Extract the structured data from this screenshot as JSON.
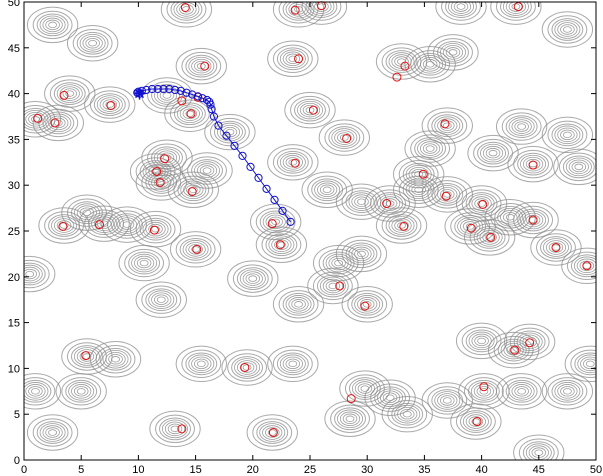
{
  "chart_data": {
    "type": "scatter",
    "title": "",
    "xlabel": "",
    "ylabel": "",
    "xlim": [
      0,
      50
    ],
    "ylim": [
      0,
      50
    ],
    "xticks": [
      0,
      5,
      10,
      15,
      20,
      25,
      30,
      35,
      40,
      45,
      50
    ],
    "yticks": [
      0,
      5,
      10,
      15,
      20,
      25,
      30,
      35,
      40,
      45,
      50
    ],
    "x_tick_labels": [
      "0",
      "5",
      "10",
      "15",
      "20",
      "25",
      "30",
      "35",
      "40",
      "45",
      "50"
    ],
    "y_tick_labels": [
      "0",
      "5",
      "10",
      "15",
      "20",
      "25",
      "30",
      "35",
      "40",
      "45",
      "50"
    ],
    "grid": false,
    "colors": {
      "contour": "#8c8c8c",
      "sources": "#e01010",
      "path": "#1010d0",
      "axis": "#000000"
    },
    "contour_centers": [
      [
        2.5,
        47.5
      ],
      [
        6,
        45.5
      ],
      [
        14.2,
        49.2
      ],
      [
        24,
        49.2
      ],
      [
        26,
        49.5
      ],
      [
        38.2,
        49.5
      ],
      [
        43,
        49.5
      ],
      [
        47.5,
        47
      ],
      [
        4,
        40
      ],
      [
        7.5,
        38.8
      ],
      [
        12.5,
        39.8
      ],
      [
        14.5,
        37.8
      ],
      [
        15.5,
        43
      ],
      [
        23.5,
        43.8
      ],
      [
        33,
        43.5
      ],
      [
        35.5,
        43.2
      ],
      [
        37.5,
        44.5
      ],
      [
        1,
        37.2
      ],
      [
        3,
        36.8
      ],
      [
        18,
        35.8
      ],
      [
        25,
        38.2
      ],
      [
        28,
        35.2
      ],
      [
        37,
        36.5
      ],
      [
        43.5,
        36.4
      ],
      [
        47.5,
        35.5
      ],
      [
        12.5,
        33
      ],
      [
        11.5,
        31.5
      ],
      [
        12,
        30.3
      ],
      [
        14.8,
        29.5
      ],
      [
        16,
        31.6
      ],
      [
        23.5,
        32.5
      ],
      [
        26.5,
        29.5
      ],
      [
        34.5,
        31.2
      ],
      [
        35.5,
        34
      ],
      [
        41,
        33.5
      ],
      [
        44.5,
        32.3
      ],
      [
        48.5,
        32
      ],
      [
        3.5,
        25.6
      ],
      [
        5.5,
        27
      ],
      [
        7,
        25.8
      ],
      [
        9,
        25.7
      ],
      [
        11.5,
        25.2
      ],
      [
        15,
        23
      ],
      [
        22,
        26
      ],
      [
        22.5,
        23.5
      ],
      [
        29.5,
        28.2
      ],
      [
        32,
        28
      ],
      [
        34.5,
        29.5
      ],
      [
        33,
        25.6
      ],
      [
        37,
        29
      ],
      [
        39,
        25.5
      ],
      [
        40,
        28
      ],
      [
        40.7,
        24.3
      ],
      [
        42.5,
        26.5
      ],
      [
        44.5,
        26.2
      ],
      [
        46.5,
        23.2
      ],
      [
        49.2,
        21.2
      ],
      [
        0.5,
        20.3
      ],
      [
        10.5,
        21.5
      ],
      [
        20,
        19.8
      ],
      [
        27.5,
        21.5
      ],
      [
        29.5,
        22.5
      ],
      [
        27,
        19
      ],
      [
        24,
        17
      ],
      [
        30,
        17
      ],
      [
        12,
        17.5
      ],
      [
        5.5,
        11.3
      ],
      [
        8,
        11
      ],
      [
        15.5,
        10.5
      ],
      [
        19.5,
        10.1
      ],
      [
        23.5,
        10.5
      ],
      [
        40,
        13
      ],
      [
        42.8,
        12
      ],
      [
        44.2,
        12.9
      ],
      [
        49.5,
        10.5
      ],
      [
        1,
        7.5
      ],
      [
        5,
        7.5
      ],
      [
        29.8,
        7.8
      ],
      [
        32,
        6.8
      ],
      [
        37,
        6.5
      ],
      [
        40.2,
        7.5
      ],
      [
        43.5,
        7.5
      ],
      [
        47.5,
        7.5
      ],
      [
        2.5,
        3
      ],
      [
        13.2,
        3.4
      ],
      [
        21.7,
        3
      ],
      [
        28.5,
        4.5
      ],
      [
        33.5,
        5
      ],
      [
        39.5,
        4.2
      ],
      [
        45,
        0.8
      ]
    ],
    "series": [
      {
        "name": "",
        "marker": "circle",
        "color": "#e01010",
        "x": [
          14.1,
          26,
          43.2,
          24,
          15.8,
          23.7,
          33.3,
          32.6,
          3.5,
          7.6,
          13.8,
          15.2,
          14.6,
          1.2,
          2.7,
          25.3,
          28.2,
          36.8,
          12.3,
          11.6,
          11.9,
          14.7,
          23.7,
          44.5,
          3.4,
          6.6,
          11.4,
          15.1,
          21.7,
          22.4,
          31.7,
          34.9,
          33.2,
          36.9,
          39.1,
          40.1,
          40.8,
          44.5,
          46.5,
          49.2,
          29.8,
          27.6,
          5.4,
          19.3,
          42.9,
          44.2,
          40.2,
          28.6,
          13.8,
          21.8,
          39.6
        ],
        "y": [
          49.4,
          49.6,
          49.5,
          43.8,
          43,
          49.1,
          43,
          41.8,
          39.8,
          38.7,
          39.2,
          39.6,
          37.8,
          37.3,
          36.8,
          38.2,
          35.1,
          36.7,
          32.9,
          31.5,
          30.3,
          29.3,
          32.4,
          32.2,
          25.5,
          25.7,
          25.1,
          23,
          25.8,
          23.5,
          28,
          31.2,
          25.5,
          28.8,
          25.3,
          27.9,
          24.3,
          26.2,
          23.2,
          21.2,
          16.8,
          19,
          11.4,
          10.1,
          12,
          12.8,
          8,
          6.7,
          3.4,
          3,
          4.2
        ]
      },
      {
        "name": "",
        "marker": "circle",
        "color": "#1010d0",
        "x": [
          23.3,
          22.6,
          21.9,
          21.2,
          20.5,
          19.8,
          19.1,
          18.4,
          17.7,
          17.0,
          16.6,
          16.4,
          16.3,
          16.2,
          16.0,
          15.6,
          15.2,
          14.7,
          14.2,
          13.7,
          13.2,
          12.7,
          12.2,
          11.7,
          11.2,
          10.7,
          10.3,
          10.0,
          9.9,
          10.1
        ],
        "y": [
          26.0,
          27.2,
          28.4,
          29.6,
          30.8,
          32.0,
          33.2,
          34.3,
          35.4,
          36.5,
          37.5,
          38.3,
          38.8,
          39.1,
          39.3,
          39.5,
          39.7,
          39.9,
          40.1,
          40.3,
          40.4,
          40.5,
          40.5,
          40.5,
          40.5,
          40.4,
          40.3,
          40.2,
          40.1,
          40.0
        ]
      }
    ]
  }
}
